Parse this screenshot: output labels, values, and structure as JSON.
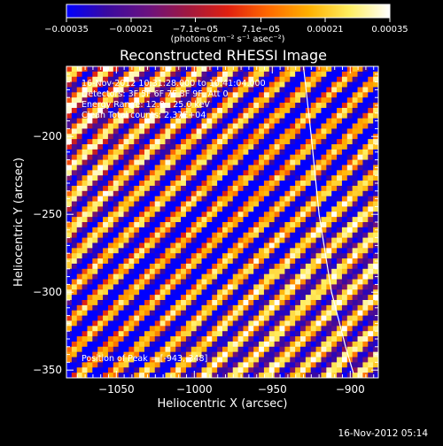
{
  "chart_data": {
    "type": "heatmap",
    "title": "Reconstructed RHESSI Image",
    "xlabel": "Heliocentric X (arcsec)",
    "ylabel": "Heliocentric Y (arcsec)",
    "xlim": [
      -1082,
      -882
    ],
    "ylim": [
      -355,
      -155
    ],
    "xticks": [
      -1050,
      -1000,
      -950,
      -900
    ],
    "xtick_labels": [
      "−1050",
      "−1000",
      "−950",
      "−900"
    ],
    "yticks": [
      -350,
      -300,
      -250,
      -200
    ],
    "ytick_labels": [
      "−350",
      "−300",
      "−250",
      "−200"
    ],
    "colorbar": {
      "range": [
        -0.00035,
        0.00035
      ],
      "ticks": [
        -0.00035,
        -0.00021,
        -7.1e-05,
        7.1e-05,
        0.00021,
        0.00035
      ],
      "tick_labels": [
        "−0.00035",
        "−0.00021",
        "−7.1e−05",
        "7.1e−05",
        "0.00021",
        "0.00035"
      ],
      "unit_label": "(photons cm⁻² s⁻¹ asec⁻²)",
      "colors": [
        "#0000ff",
        "#3a0aa0",
        "#6a1280",
        "#a01840",
        "#e02010",
        "#ff6a00",
        "#ffb000",
        "#ffee60",
        "#ffffff"
      ]
    },
    "grid": {
      "nx": 60,
      "ny": 60,
      "stripe_period_px": 35,
      "stripe_angle_deg": 45
    },
    "limb": [
      [
        -930,
        -155
      ],
      [
        -925,
        -200
      ],
      [
        -920,
        -250
      ],
      [
        -912,
        -300
      ],
      [
        -903,
        -335
      ],
      [
        -898,
        -352
      ]
    ],
    "limb_color": "#ffffff"
  },
  "annotations": {
    "time": "16-Nov-2012 10:31:28.000 to 10:41:04.000",
    "detectors": "Detectors: 3F 5F 6F 7F 8F 9F, Att 0",
    "energy": "Energy Range: 12.0 - 25.0 keV",
    "algorithm": "Clean    Total counts: 2.37E+04",
    "peak": "Position of Peak = [-943,-348]"
  },
  "footer": {
    "timestamp": "16-Nov-2012 05:14"
  }
}
